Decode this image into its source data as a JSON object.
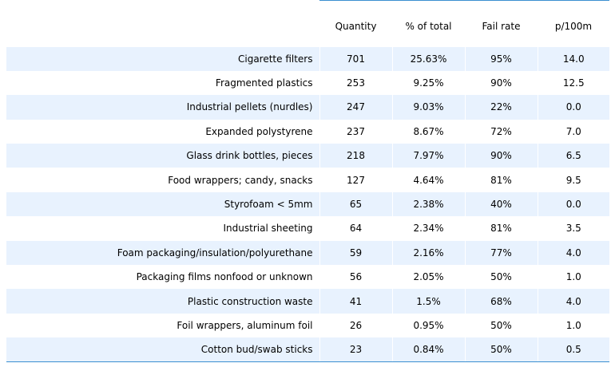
{
  "table": {
    "headers": [
      "",
      "Quantity",
      "% of total",
      "Fail rate",
      "p/100m"
    ],
    "rows": [
      [
        "Cigarette filters",
        "701",
        "25.63%",
        "95%",
        "14.0"
      ],
      [
        "Fragmented plastics",
        "253",
        "9.25%",
        "90%",
        "12.5"
      ],
      [
        "Industrial pellets (nurdles)",
        "247",
        "9.03%",
        "22%",
        "0.0"
      ],
      [
        "Expanded polystyrene",
        "237",
        "8.67%",
        "72%",
        "7.0"
      ],
      [
        "Glass drink bottles, pieces",
        "218",
        "7.97%",
        "90%",
        "6.5"
      ],
      [
        "Food wrappers; candy, snacks",
        "127",
        "4.64%",
        "81%",
        "9.5"
      ],
      [
        "Styrofoam < 5mm",
        "65",
        "2.38%",
        "40%",
        "0.0"
      ],
      [
        "Industrial sheeting",
        "64",
        "2.34%",
        "81%",
        "3.5"
      ],
      [
        "Foam packaging/insulation/polyurethane",
        "59",
        "2.16%",
        "77%",
        "4.0"
      ],
      [
        "Packaging films nonfood or unknown",
        "56",
        "2.05%",
        "50%",
        "1.0"
      ],
      [
        "Plastic construction waste",
        "41",
        "1.5%",
        "68%",
        "4.0"
      ],
      [
        "Foil wrappers, aluminum foil",
        "26",
        "0.95%",
        "50%",
        "1.0"
      ],
      [
        "Cotton bud/swab sticks",
        "23",
        "0.84%",
        "50%",
        "0.5"
      ]
    ]
  },
  "colors": {
    "stripe": "#e8f2fe",
    "rule": "#3b8fd0"
  }
}
